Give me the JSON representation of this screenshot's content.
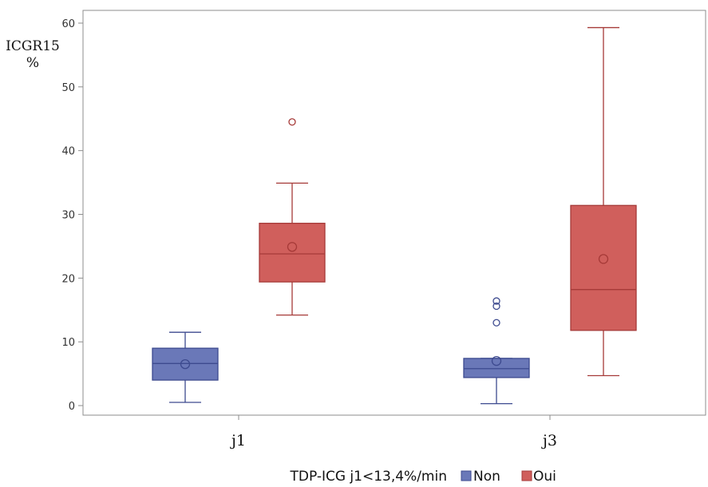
{
  "chart_data": {
    "type": "box",
    "title": "",
    "xlabel": "",
    "ylabel": "ICGR15",
    "ylabel_unit": "%",
    "ylim": [
      -1.5,
      62
    ],
    "yticks": [
      0,
      10,
      20,
      30,
      40,
      50,
      60
    ],
    "yticks_labels": [
      "0",
      "10",
      "20",
      "30",
      "40",
      "50",
      "60"
    ],
    "grid": false,
    "categories": [
      "j1",
      "j3"
    ],
    "legend": {
      "title": "TDP-ICG j1<13,4%/min",
      "placement": "bottom"
    },
    "series": [
      {
        "name": "Non",
        "color": "#6a78b8",
        "stroke": "#3d4a8f",
        "boxes": [
          {
            "category": "j1",
            "min": 0.5,
            "q1": 4.0,
            "median": 6.6,
            "q3": 9.0,
            "max": 11.5,
            "mean": 6.5,
            "outliers": []
          },
          {
            "category": "j3",
            "min": 0.3,
            "q1": 4.4,
            "median": 5.8,
            "q3": 7.4,
            "max": 7.4,
            "mean": 7.0,
            "outliers": [
              13.0,
              15.6,
              16.4
            ]
          }
        ]
      },
      {
        "name": "Oui",
        "color": "#d05f5c",
        "stroke": "#a63a38",
        "boxes": [
          {
            "category": "j1",
            "min": 14.2,
            "q1": 19.4,
            "median": 23.8,
            "q3": 28.6,
            "max": 34.9,
            "mean": 24.9,
            "outliers": [
              44.5
            ]
          },
          {
            "category": "j3",
            "min": 4.7,
            "q1": 11.8,
            "median": 18.2,
            "q3": 31.4,
            "max": 59.3,
            "mean": 23.0,
            "outliers": []
          }
        ]
      }
    ]
  }
}
